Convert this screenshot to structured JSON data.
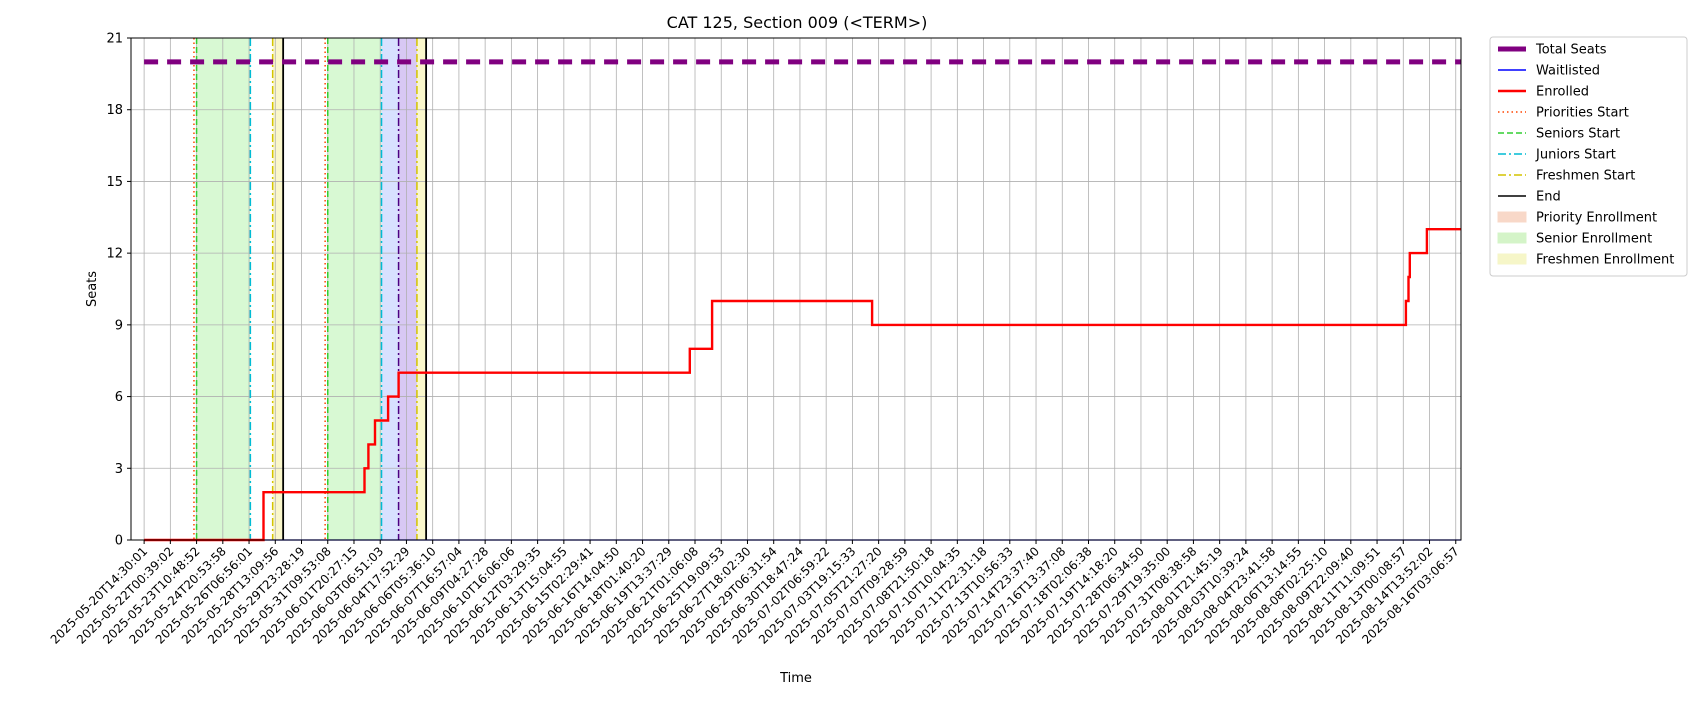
{
  "chart_data": {
    "type": "line",
    "title": "CAT 125, Section 009 (<TERM>)",
    "xlabel": "Time",
    "ylabel": "Seats",
    "ylim": [
      0,
      21
    ],
    "yticks": [
      0,
      3,
      6,
      9,
      12,
      15,
      18,
      21
    ],
    "grid": true,
    "legend_position": "outside-top-right",
    "x_ticks": [
      "2025-05-20T14:30:01",
      "2025-05-22T00:39:02",
      "2025-05-23T10:48:52",
      "2025-05-24T20:53:58",
      "2025-05-26T06:56:01",
      "2025-05-28T13:09:56",
      "2025-05-29T23:28:19",
      "2025-05-31T09:53:08",
      "2025-06-01T20:27:15",
      "2025-06-03T06:51:03",
      "2025-06-04T17:52:29",
      "2025-06-06T05:36:10",
      "2025-06-07T16:57:04",
      "2025-06-09T04:27:28",
      "2025-06-10T16:06:06",
      "2025-06-12T03:29:35",
      "2025-06-13T15:04:55",
      "2025-06-15T02:29:41",
      "2025-06-16T14:04:50",
      "2025-06-18T01:40:20",
      "2025-06-19T13:37:29",
      "2025-06-21T01:06:08",
      "2025-06-25T19:09:53",
      "2025-06-27T18:02:30",
      "2025-06-29T06:31:54",
      "2025-06-30T18:47:24",
      "2025-07-02T06:59:22",
      "2025-07-03T19:15:33",
      "2025-07-05T21:27:20",
      "2025-07-07T09:28:59",
      "2025-07-08T21:50:18",
      "2025-07-10T10:04:35",
      "2025-07-11T22:31:18",
      "2025-07-13T10:56:33",
      "2025-07-14T23:37:40",
      "2025-07-16T13:37:08",
      "2025-07-18T02:06:38",
      "2025-07-19T14:18:20",
      "2025-07-28T06:34:50",
      "2025-07-29T19:35:00",
      "2025-07-31T08:38:58",
      "2025-08-01T21:45:19",
      "2025-08-03T10:39:24",
      "2025-08-04T23:41:58",
      "2025-08-06T13:14:55",
      "2025-08-08T02:25:10",
      "2025-08-09T22:09:40",
      "2025-08-11T11:09:51",
      "2025-08-13T00:08:57",
      "2025-08-14T13:52:02",
      "2025-08-16T03:06:57"
    ],
    "series": [
      {
        "name": "Total Seats",
        "color": "#800080",
        "style": "thick-dashed",
        "points": [
          [
            0,
            20
          ],
          [
            50.2,
            20
          ]
        ]
      },
      {
        "name": "Waitlisted",
        "color": "#0000ff",
        "style": "solid",
        "points": [
          [
            0,
            0
          ],
          [
            50.2,
            0
          ]
        ]
      },
      {
        "name": "Enrolled",
        "color": "#ff0000",
        "style": "solid-step",
        "points": [
          [
            0,
            0
          ],
          [
            4.55,
            0
          ],
          [
            4.55,
            2
          ],
          [
            8.4,
            2
          ],
          [
            8.4,
            3
          ],
          [
            8.55,
            3
          ],
          [
            8.55,
            4
          ],
          [
            8.8,
            4
          ],
          [
            8.8,
            5
          ],
          [
            9.3,
            5
          ],
          [
            9.3,
            6
          ],
          [
            9.7,
            6
          ],
          [
            9.7,
            7
          ],
          [
            20.8,
            7
          ],
          [
            20.8,
            8
          ],
          [
            21.65,
            8
          ],
          [
            21.65,
            10
          ],
          [
            27.75,
            10
          ],
          [
            27.75,
            9
          ],
          [
            48.1,
            9
          ],
          [
            48.1,
            10
          ],
          [
            48.2,
            10
          ],
          [
            48.2,
            11
          ],
          [
            48.25,
            11
          ],
          [
            48.25,
            12
          ],
          [
            48.9,
            12
          ],
          [
            48.9,
            13
          ],
          [
            50.2,
            13
          ]
        ]
      }
    ],
    "vertical_markers": [
      {
        "name": "Priorities Start",
        "color": "#ff4500",
        "style": "dotted",
        "x": [
          1.9,
          6.9
        ]
      },
      {
        "name": "Seniors Start",
        "color": "#32cd32",
        "style": "dashed",
        "x": [
          2.0,
          7.0
        ]
      },
      {
        "name": "Juniors Start",
        "color": "#00bcd4",
        "style": "dashdot",
        "x": [
          4.05,
          9.05
        ]
      },
      {
        "name": "Freshmen Start",
        "color": "#d4c400",
        "style": "dashdot",
        "x": [
          4.9,
          10.4
        ]
      },
      {
        "name": "End",
        "color": "#000000",
        "style": "solid",
        "x": [
          5.3,
          10.75
        ]
      },
      {
        "name": "",
        "color": "#4b0082",
        "style": "dashdot",
        "x": [
          9.7
        ]
      }
    ],
    "regions": [
      {
        "name": "Senior Enrollment",
        "color": "#90ee80",
        "opacity": 0.35,
        "x0": 2.0,
        "x1": 4.05
      },
      {
        "name": "Freshmen Enrollment",
        "color": "#f5f0a0",
        "opacity": 0.55,
        "x0": 4.9,
        "x1": 5.3
      },
      {
        "name": "Senior Enrollment",
        "color": "#90ee80",
        "opacity": 0.35,
        "x0": 7.0,
        "x1": 9.05
      },
      {
        "name": "",
        "color": "#c8d4ff",
        "opacity": 0.7,
        "x0": 9.05,
        "x1": 9.7
      },
      {
        "name": "",
        "color": "#c8b0f0",
        "opacity": 0.7,
        "x0": 9.7,
        "x1": 10.4
      },
      {
        "name": "Freshmen Enrollment",
        "color": "#f5f0a0",
        "opacity": 0.55,
        "x0": 10.4,
        "x1": 10.75
      }
    ],
    "legend": [
      {
        "label": "Total Seats",
        "kind": "line",
        "color": "#800080",
        "style": "thick"
      },
      {
        "label": "Waitlisted",
        "kind": "line",
        "color": "#0000ff",
        "style": "solid"
      },
      {
        "label": "Enrolled",
        "kind": "line",
        "color": "#ff0000",
        "style": "solid-thick"
      },
      {
        "label": "Priorities Start",
        "kind": "line",
        "color": "#ff4500",
        "style": "dotted"
      },
      {
        "label": "Seniors Start",
        "kind": "line",
        "color": "#32cd32",
        "style": "dashed"
      },
      {
        "label": "Juniors Start",
        "kind": "line",
        "color": "#00bcd4",
        "style": "dashdot"
      },
      {
        "label": "Freshmen Start",
        "kind": "line",
        "color": "#d4c400",
        "style": "dashdot"
      },
      {
        "label": "End",
        "kind": "line",
        "color": "#000000",
        "style": "solid"
      },
      {
        "label": "Priority Enrollment",
        "kind": "patch",
        "color": "#f8d8c8",
        "style": ""
      },
      {
        "label": "Senior Enrollment",
        "kind": "patch",
        "color": "#d4f4c8",
        "style": ""
      },
      {
        "label": "Freshmen Enrollment",
        "kind": "patch",
        "color": "#f6f6c8",
        "style": ""
      }
    ]
  }
}
